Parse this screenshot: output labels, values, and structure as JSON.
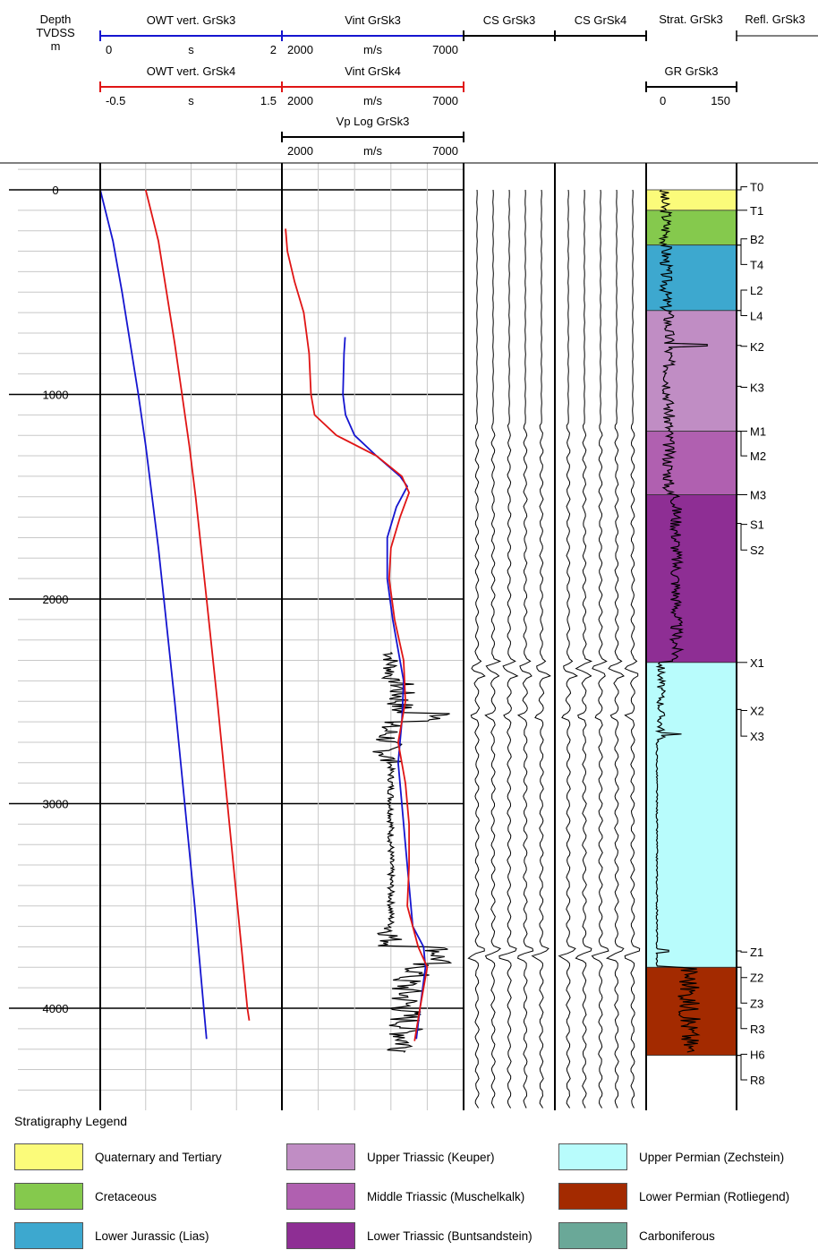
{
  "chart_data": {
    "type": "line",
    "header": {
      "depth": [
        "Depth",
        "TVDSS",
        "m"
      ],
      "owt3": {
        "title": "OWT vert. GrSk3",
        "min": "0",
        "unit": "s",
        "max": "2",
        "color": "#1515d0"
      },
      "owt4": {
        "title": "OWT vert. GrSk4",
        "min": "-0.5",
        "unit": "s",
        "max": "1.5",
        "color": "#e01515"
      },
      "vint3": {
        "title": "Vint GrSk3",
        "min": "2000",
        "unit": "m/s",
        "max": "7000",
        "color": "#1515d0"
      },
      "vint4": {
        "title": "Vint GrSk4",
        "min": "2000",
        "unit": "m/s",
        "max": "7000",
        "color": "#e01515"
      },
      "vp": {
        "title": "Vp Log GrSk3",
        "min": "2000",
        "unit": "m/s",
        "max": "7000",
        "color": "#000000"
      },
      "cs3": {
        "title": "CS GrSk3"
      },
      "cs4": {
        "title": "CS GrSk4"
      },
      "strat": {
        "title": "Strat. GrSk3"
      },
      "gr": {
        "title": "GR GrSk3",
        "min": "0",
        "max": "150"
      },
      "refl": {
        "title": "Refl. GrSk3"
      }
    },
    "depth_axis": {
      "min": -300,
      "max": 4500,
      "ticks": [
        "0",
        "1000",
        "2000",
        "3000",
        "4000"
      ],
      "tick_values": [
        0,
        1000,
        2000,
        3000,
        4000
      ]
    },
    "owt_series": [
      {
        "name": "OWT vert. GrSk3",
        "color": "#1515d0",
        "axis": [
          0,
          2
        ],
        "depth": [
          0,
          250,
          500,
          750,
          1000,
          1250,
          1500,
          1750,
          2000,
          2500,
          3000,
          3500,
          4000,
          4150
        ],
        "value": [
          0,
          0.14,
          0.24,
          0.33,
          0.42,
          0.5,
          0.57,
          0.64,
          0.7,
          0.82,
          0.93,
          1.04,
          1.14,
          1.17
        ]
      },
      {
        "name": "OWT vert. GrSk4",
        "color": "#e01515",
        "axis": [
          -0.5,
          1.5
        ],
        "depth": [
          0,
          250,
          500,
          750,
          1000,
          1250,
          1500,
          1750,
          2000,
          2500,
          3000,
          3500,
          4000,
          4060
        ],
        "value": [
          0,
          0.14,
          0.23,
          0.32,
          0.4,
          0.48,
          0.55,
          0.61,
          0.67,
          0.79,
          0.9,
          1.01,
          1.12,
          1.14
        ]
      }
    ],
    "vint_series": [
      {
        "name": "Vint GrSk3",
        "color": "#1515d0",
        "depth": [
          720,
          800,
          1000,
          1100,
          1200,
          1300,
          1400,
          1450,
          1550,
          1700,
          1900,
          2100,
          2400,
          2600,
          2800,
          3000,
          3200,
          3400,
          3600,
          3700,
          3800,
          4000,
          4150
        ],
        "value": [
          3740,
          3710,
          3680,
          3750,
          4000,
          4600,
          5250,
          5450,
          5150,
          4900,
          4900,
          5050,
          5350,
          5300,
          5200,
          5300,
          5400,
          5500,
          5600,
          5900,
          5950,
          5800,
          5700
        ]
      },
      {
        "name": "Vint GrSk4",
        "color": "#e01515",
        "depth": [
          190,
          300,
          450,
          600,
          800,
          1000,
          1100,
          1200,
          1300,
          1400,
          1480,
          1600,
          1750,
          1900,
          2100,
          2300,
          2500,
          2700,
          2900,
          3100,
          3300,
          3500,
          3700,
          3800,
          4000,
          4160
        ],
        "value": [
          2100,
          2150,
          2350,
          2600,
          2750,
          2800,
          2900,
          3500,
          4600,
          5300,
          5500,
          5250,
          5000,
          4950,
          5100,
          5350,
          5400,
          5200,
          5400,
          5500,
          5500,
          5450,
          5750,
          6000,
          5800,
          5650
        ]
      }
    ],
    "strat_intervals": [
      {
        "top": 0,
        "base": 100,
        "color": "#fbfb7a",
        "legend": 0
      },
      {
        "top": 100,
        "base": 270,
        "color": "#85c94d",
        "legend": 1
      },
      {
        "top": 270,
        "base": 590,
        "color": "#3da8cf",
        "legend": 2
      },
      {
        "top": 590,
        "base": 1180,
        "color": "#c08dc4",
        "legend": 3
      },
      {
        "top": 1180,
        "base": 1490,
        "color": "#b060b0",
        "legend": 4
      },
      {
        "top": 1490,
        "base": 2310,
        "color": "#8e2e94",
        "legend": 5
      },
      {
        "top": 2310,
        "base": 3800,
        "color": "#b8fcfc",
        "legend": 6
      },
      {
        "top": 3800,
        "base": 4230,
        "color": "#a32a00",
        "legend": 7
      }
    ],
    "markers": [
      {
        "label": "T0",
        "depth": 0,
        "at": -15
      },
      {
        "label": "T1",
        "depth": 100,
        "at": 100
      },
      {
        "label": "B2",
        "depth": 270,
        "at": 240
      },
      {
        "label": "T4",
        "depth": 270,
        "at": 365
      },
      {
        "label": "L2",
        "depth": 590,
        "at": 490
      },
      {
        "label": "L4",
        "depth": 590,
        "at": 615
      },
      {
        "label": "K2",
        "depth": 760,
        "at": 765
      },
      {
        "label": "K3",
        "depth": 960,
        "at": 965
      },
      {
        "label": "M1",
        "depth": 1180,
        "at": 1180
      },
      {
        "label": "M2",
        "depth": 1180,
        "at": 1300
      },
      {
        "label": "M3",
        "depth": 1490,
        "at": 1490
      },
      {
        "label": "S1",
        "depth": 1630,
        "at": 1635
      },
      {
        "label": "S2",
        "depth": 1630,
        "at": 1760
      },
      {
        "label": "X1",
        "depth": 2310,
        "at": 2310
      },
      {
        "label": "X2",
        "depth": 2540,
        "at": 2545
      },
      {
        "label": "X3",
        "depth": 2540,
        "at": 2670
      },
      {
        "label": "Z1",
        "depth": 3720,
        "at": 3725
      },
      {
        "label": "Z2",
        "depth": 3800,
        "at": 3850
      },
      {
        "label": "Z3",
        "depth": 3800,
        "at": 3975
      },
      {
        "label": "R3",
        "depth": 4000,
        "at": 4100
      },
      {
        "label": "H6",
        "depth": 4230,
        "at": 4225
      },
      {
        "label": "R8",
        "depth": 4230,
        "at": 4350
      }
    ]
  },
  "legend": {
    "title": "Stratigraphy Legend",
    "items": [
      {
        "label": "Quaternary and Tertiary",
        "color": "#fbfb7a"
      },
      {
        "label": "Cretaceous",
        "color": "#85c94d"
      },
      {
        "label": "Lower Jurassic (Lias)",
        "color": "#3da8cf"
      },
      {
        "label": "Upper Triassic (Keuper)",
        "color": "#c08dc4"
      },
      {
        "label": "Middle Triassic (Muschelkalk)",
        "color": "#b060b0"
      },
      {
        "label": "Lower Triassic (Buntsandstein)",
        "color": "#8e2e94"
      },
      {
        "label": "Upper Permian (Zechstein)",
        "color": "#b8fcfc"
      },
      {
        "label": "Lower Permian (Rotliegend)",
        "color": "#a32a00"
      },
      {
        "label": "Carboniferous",
        "color": "#6aa898"
      }
    ]
  }
}
